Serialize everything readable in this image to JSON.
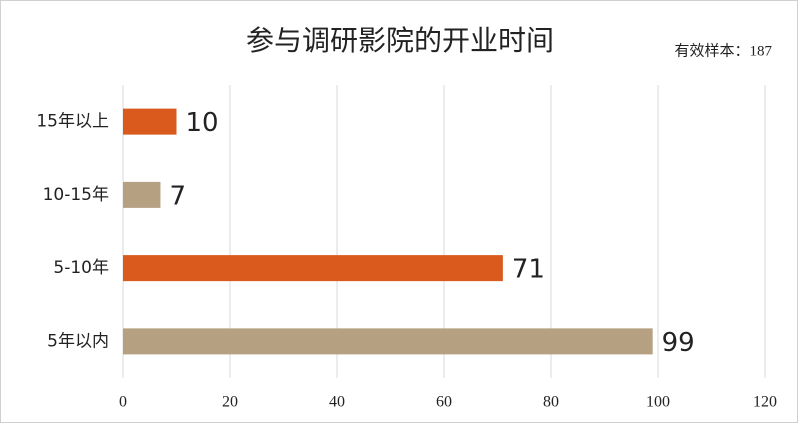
{
  "chart_data": {
    "type": "bar",
    "orientation": "horizontal",
    "title": "参与调研影院的开业时间",
    "annotation": "有效样本：187",
    "categories": [
      "15年以上",
      "10-15年",
      "5-10年",
      "5年以内"
    ],
    "values": [
      10,
      7,
      71,
      99
    ],
    "colors": [
      "#d95a1c",
      "#b5a082",
      "#d95a1c",
      "#b5a082"
    ],
    "xlim": [
      0,
      120
    ],
    "xticks": [
      0,
      20,
      40,
      60,
      80,
      100,
      120
    ],
    "grid": true
  }
}
